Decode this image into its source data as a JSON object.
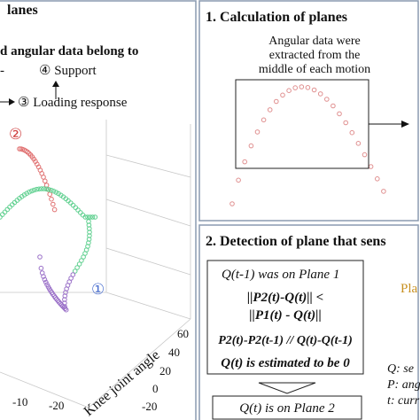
{
  "left": {
    "title": "lanes",
    "subtitle": "d angular data belong to",
    "dash": "-",
    "support": "④ Support",
    "loading": "③ Loading response",
    "label2": "②",
    "label1": "①",
    "ticks": [
      "60",
      "40",
      "20",
      "0",
      "-20"
    ],
    "axis_label": "Knee joint angle",
    "bottom_ticks": [
      "-10",
      "-20"
    ]
  },
  "top_right": {
    "title": "1. Calculation of planes",
    "note": [
      "Angular data were",
      "extracted from the",
      "middle of each motion"
    ]
  },
  "bottom_right": {
    "title": "2. Detection of plane that sens",
    "lines": [
      "Q(t-1) was on Plane 1",
      "||P2(t)-Q(t)|| <",
      "||P1(t) - Q(t)||",
      "P2(t)-P2(t-1) // Q(t)-Q(t-1)",
      "Q(t) is estimated to be 0"
    ],
    "result": "Q(t) is on Plane 2",
    "side": "Pla",
    "legend": [
      "Q: se",
      "P: ang",
      "t: curr"
    ]
  }
}
